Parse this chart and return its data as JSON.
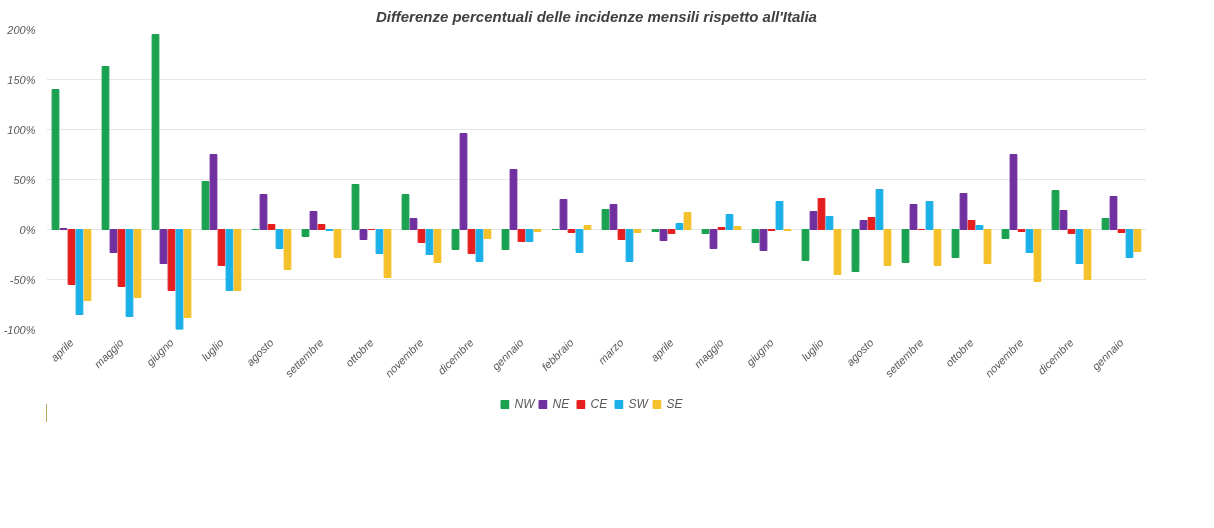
{
  "chart_data": {
    "type": "bar",
    "title": "Differenze percentuali delle incidenze mensili rispetto all'Italia",
    "categories": [
      "aprile",
      "maggio",
      "giugno",
      "luglio",
      "agosto",
      "settembre",
      "ottobre",
      "novembre",
      "dicembre",
      "gennaio",
      "febbraio",
      "marzo",
      "aprile",
      "maggio",
      "giugno",
      "luglio",
      "agosto",
      "settembre",
      "ottobre",
      "novembre",
      "dicembre",
      "gennaio"
    ],
    "series": [
      {
        "name": "NW",
        "color": "#1aa250",
        "values": [
          140,
          163,
          195,
          48,
          0,
          -7,
          45,
          35,
          -20,
          -20,
          0,
          20,
          -2,
          -4,
          -13,
          -31,
          -42,
          -33,
          -28,
          -9,
          39,
          11
        ]
      },
      {
        "name": "NE",
        "color": "#7030a0",
        "values": [
          1,
          -23,
          -34,
          75,
          35,
          18,
          -10,
          11,
          96,
          60,
          30,
          25,
          -11,
          -19,
          -21,
          18,
          9,
          25,
          36,
          75,
          19,
          33
        ]
      },
      {
        "name": "CE",
        "color": "#e51f1f",
        "values": [
          -55,
          -57,
          -61,
          -36,
          5,
          5,
          0,
          -13,
          -24,
          -12,
          -3,
          -10,
          -4,
          2,
          -1,
          31,
          12,
          0,
          9,
          -2,
          -4,
          -3
        ]
      },
      {
        "name": "SW",
        "color": "#1cb0e8",
        "values": [
          -85,
          -87,
          -100,
          -61,
          -19,
          -1,
          -24,
          -25,
          -32,
          -12,
          -23,
          -32,
          6,
          15,
          28,
          13,
          40,
          28,
          4,
          -23,
          -34,
          -28
        ]
      },
      {
        "name": "SE",
        "color": "#f5c12a",
        "values": [
          -71,
          -68,
          -88,
          -61,
          -40,
          -28,
          -48,
          -33,
          -9,
          -2,
          4,
          -3,
          17,
          3,
          -1,
          -45,
          -36,
          -36,
          -34,
          -52,
          -50,
          -22
        ]
      }
    ],
    "ylim": [
      -100,
      200
    ],
    "yticks": [
      {
        "value": -100,
        "label": "-100%"
      },
      {
        "value": -50,
        "label": "-50%"
      },
      {
        "value": 0,
        "label": "0%"
      },
      {
        "value": 50,
        "label": "50%"
      },
      {
        "value": 100,
        "label": "100%"
      },
      {
        "value": 150,
        "label": "150%"
      },
      {
        "value": 200,
        "label": "200%"
      }
    ],
    "grid": "y",
    "legend": "bottom"
  }
}
